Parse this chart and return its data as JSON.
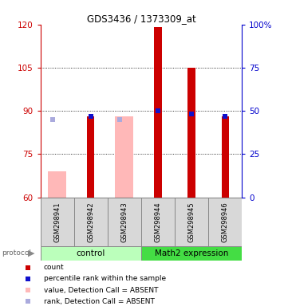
{
  "title": "GDS3436 / 1373309_at",
  "samples": [
    "GSM298941",
    "GSM298942",
    "GSM298943",
    "GSM298944",
    "GSM298945",
    "GSM298946"
  ],
  "ylim_left": [
    60,
    120
  ],
  "ylim_right": [
    0,
    100
  ],
  "yticks_left": [
    60,
    75,
    90,
    105,
    120
  ],
  "yticks_right": [
    0,
    25,
    50,
    75,
    100
  ],
  "count_values": [
    null,
    88,
    null,
    119,
    105,
    88
  ],
  "count_color": "#cc0000",
  "rank_values_left": [
    null,
    88,
    null,
    90,
    89,
    88
  ],
  "rank_absent_values_left": [
    87,
    null,
    87,
    null,
    null,
    null
  ],
  "rank_color": "#1010cc",
  "absent_rank_color": "#aaaadd",
  "absent_value_bars": [
    69,
    null,
    88,
    null,
    null,
    null
  ],
  "absent_value_color": "#ffb8b8",
  "bar_bottom": 60,
  "left_axis_color": "#cc0000",
  "right_axis_color": "#0000cc",
  "control_color": "#bbffbb",
  "math2_color": "#44dd44",
  "sample_box_color": "#d8d8d8",
  "grid_color": "black"
}
